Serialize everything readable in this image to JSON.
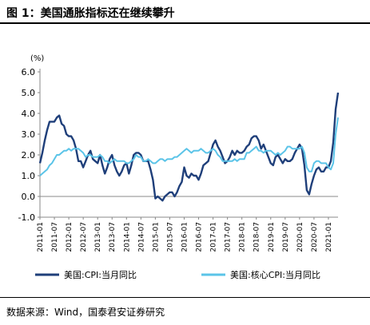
{
  "figure": {
    "title": "图 1：美国通胀指标还在继续攀升",
    "source": "数据来源：Wind，国泰君安证券研究"
  },
  "chart_data": {
    "type": "line",
    "unit_label": "(%)",
    "ylim": [
      -1.0,
      6.0
    ],
    "yticks": [
      "6.0",
      "5.0",
      "4.0",
      "3.0",
      "2.0",
      "1.0",
      "0.0",
      "-1.0"
    ],
    "ytick_values": [
      6,
      5,
      4,
      3,
      2,
      1,
      0,
      -1
    ],
    "xticks": [
      "2011-01",
      "2011-07",
      "2012-01",
      "2012-07",
      "2013-01",
      "2013-07",
      "2014-01",
      "2014-07",
      "2015-01",
      "2015-07",
      "2016-01",
      "2016-07",
      "2017-01",
      "2017-07",
      "2018-01",
      "2018-07",
      "2019-01",
      "2019-07",
      "2020-01",
      "2020-07",
      "2021-01"
    ],
    "x_start": "2011-01",
    "x_end": "2021-05",
    "grid": false,
    "legend_position": "bottom",
    "series": [
      {
        "name": "美国:CPI:当月同比",
        "color": "#1f3f7a",
        "x": [
          "2011-01",
          "2011-02",
          "2011-03",
          "2011-04",
          "2011-05",
          "2011-06",
          "2011-07",
          "2011-08",
          "2011-09",
          "2011-10",
          "2011-11",
          "2011-12",
          "2012-01",
          "2012-02",
          "2012-03",
          "2012-04",
          "2012-05",
          "2012-06",
          "2012-07",
          "2012-08",
          "2012-09",
          "2012-10",
          "2012-11",
          "2012-12",
          "2013-01",
          "2013-02",
          "2013-03",
          "2013-04",
          "2013-05",
          "2013-06",
          "2013-07",
          "2013-08",
          "2013-09",
          "2013-10",
          "2013-11",
          "2013-12",
          "2014-01",
          "2014-02",
          "2014-03",
          "2014-04",
          "2014-05",
          "2014-06",
          "2014-07",
          "2014-08",
          "2014-09",
          "2014-10",
          "2014-11",
          "2014-12",
          "2015-01",
          "2015-02",
          "2015-03",
          "2015-04",
          "2015-05",
          "2015-06",
          "2015-07",
          "2015-08",
          "2015-09",
          "2015-10",
          "2015-11",
          "2015-12",
          "2016-01",
          "2016-02",
          "2016-03",
          "2016-04",
          "2016-05",
          "2016-06",
          "2016-07",
          "2016-08",
          "2016-09",
          "2016-10",
          "2016-11",
          "2016-12",
          "2017-01",
          "2017-02",
          "2017-03",
          "2017-04",
          "2017-05",
          "2017-06",
          "2017-07",
          "2017-08",
          "2017-09",
          "2017-10",
          "2017-11",
          "2017-12",
          "2018-01",
          "2018-02",
          "2018-03",
          "2018-04",
          "2018-05",
          "2018-06",
          "2018-07",
          "2018-08",
          "2018-09",
          "2018-10",
          "2018-11",
          "2018-12",
          "2019-01",
          "2019-02",
          "2019-03",
          "2019-04",
          "2019-05",
          "2019-06",
          "2019-07",
          "2019-08",
          "2019-09",
          "2019-10",
          "2019-11",
          "2019-12",
          "2020-01",
          "2020-02",
          "2020-03",
          "2020-04",
          "2020-05",
          "2020-06",
          "2020-07",
          "2020-08",
          "2020-09",
          "2020-10",
          "2020-11",
          "2020-12",
          "2021-01",
          "2021-02",
          "2021-03",
          "2021-04",
          "2021-05"
        ],
        "values": [
          1.6,
          2.1,
          2.7,
          3.2,
          3.6,
          3.6,
          3.6,
          3.8,
          3.9,
          3.5,
          3.4,
          3.0,
          2.9,
          2.9,
          2.7,
          2.3,
          1.7,
          1.7,
          1.4,
          1.7,
          2.0,
          2.2,
          1.8,
          1.7,
          1.6,
          2.0,
          1.5,
          1.1,
          1.4,
          1.8,
          2.0,
          1.5,
          1.2,
          1.0,
          1.2,
          1.5,
          1.6,
          1.1,
          1.5,
          2.0,
          2.1,
          2.1,
          2.0,
          1.7,
          1.7,
          1.7,
          1.3,
          0.8,
          -0.1,
          0.0,
          -0.1,
          -0.2,
          0.0,
          0.1,
          0.2,
          0.2,
          0.0,
          0.2,
          0.5,
          0.7,
          1.4,
          1.0,
          0.9,
          1.1,
          1.0,
          1.0,
          0.8,
          1.1,
          1.5,
          1.6,
          1.7,
          2.1,
          2.5,
          2.7,
          2.4,
          2.2,
          1.9,
          1.6,
          1.7,
          1.9,
          2.2,
          2.0,
          2.2,
          2.1,
          2.1,
          2.2,
          2.4,
          2.5,
          2.8,
          2.9,
          2.9,
          2.7,
          2.3,
          2.5,
          2.2,
          1.9,
          1.6,
          1.5,
          1.9,
          2.0,
          1.8,
          1.6,
          1.8,
          1.7,
          1.7,
          1.8,
          2.1,
          2.3,
          2.5,
          2.3,
          1.5,
          0.3,
          0.1,
          0.6,
          1.0,
          1.3,
          1.4,
          1.2,
          1.2,
          1.4,
          1.4,
          1.7,
          2.6,
          4.2,
          5.0
        ]
      },
      {
        "name": "美国:核心CPI:当月同比",
        "color": "#5bc4e8",
        "x": [
          "2011-01",
          "2011-02",
          "2011-03",
          "2011-04",
          "2011-05",
          "2011-06",
          "2011-07",
          "2011-08",
          "2011-09",
          "2011-10",
          "2011-11",
          "2011-12",
          "2012-01",
          "2012-02",
          "2012-03",
          "2012-04",
          "2012-05",
          "2012-06",
          "2012-07",
          "2012-08",
          "2012-09",
          "2012-10",
          "2012-11",
          "2012-12",
          "2013-01",
          "2013-02",
          "2013-03",
          "2013-04",
          "2013-05",
          "2013-06",
          "2013-07",
          "2013-08",
          "2013-09",
          "2013-10",
          "2013-11",
          "2013-12",
          "2014-01",
          "2014-02",
          "2014-03",
          "2014-04",
          "2014-05",
          "2014-06",
          "2014-07",
          "2014-08",
          "2014-09",
          "2014-10",
          "2014-11",
          "2014-12",
          "2015-01",
          "2015-02",
          "2015-03",
          "2015-04",
          "2015-05",
          "2015-06",
          "2015-07",
          "2015-08",
          "2015-09",
          "2015-10",
          "2015-11",
          "2015-12",
          "2016-01",
          "2016-02",
          "2016-03",
          "2016-04",
          "2016-05",
          "2016-06",
          "2016-07",
          "2016-08",
          "2016-09",
          "2016-10",
          "2016-11",
          "2016-12",
          "2017-01",
          "2017-02",
          "2017-03",
          "2017-04",
          "2017-05",
          "2017-06",
          "2017-07",
          "2017-08",
          "2017-09",
          "2017-10",
          "2017-11",
          "2017-12",
          "2018-01",
          "2018-02",
          "2018-03",
          "2018-04",
          "2018-05",
          "2018-06",
          "2018-07",
          "2018-08",
          "2018-09",
          "2018-10",
          "2018-11",
          "2018-12",
          "2019-01",
          "2019-02",
          "2019-03",
          "2019-04",
          "2019-05",
          "2019-06",
          "2019-07",
          "2019-08",
          "2019-09",
          "2019-10",
          "2019-11",
          "2019-12",
          "2020-01",
          "2020-02",
          "2020-03",
          "2020-04",
          "2020-05",
          "2020-06",
          "2020-07",
          "2020-08",
          "2020-09",
          "2020-10",
          "2020-11",
          "2020-12",
          "2021-01",
          "2021-02",
          "2021-03",
          "2021-04",
          "2021-05"
        ],
        "values": [
          1.0,
          1.1,
          1.2,
          1.3,
          1.5,
          1.6,
          1.8,
          2.0,
          2.0,
          2.1,
          2.2,
          2.2,
          2.3,
          2.2,
          2.3,
          2.3,
          2.3,
          2.2,
          2.1,
          1.9,
          2.0,
          2.0,
          1.9,
          1.9,
          1.9,
          2.0,
          1.9,
          1.7,
          1.7,
          1.6,
          1.7,
          1.8,
          1.7,
          1.7,
          1.7,
          1.7,
          1.6,
          1.6,
          1.7,
          1.8,
          2.0,
          1.9,
          1.9,
          1.7,
          1.7,
          1.8,
          1.7,
          1.6,
          1.6,
          1.7,
          1.8,
          1.8,
          1.7,
          1.8,
          1.8,
          1.8,
          1.9,
          1.9,
          2.0,
          2.1,
          2.2,
          2.3,
          2.2,
          2.1,
          2.2,
          2.2,
          2.2,
          2.3,
          2.2,
          2.1,
          2.1,
          2.2,
          2.3,
          2.2,
          2.0,
          1.9,
          1.7,
          1.7,
          1.7,
          1.7,
          1.7,
          1.8,
          1.7,
          1.8,
          1.8,
          1.8,
          2.1,
          2.1,
          2.2,
          2.3,
          2.4,
          2.2,
          2.2,
          2.1,
          2.2,
          2.2,
          2.2,
          2.1,
          2.0,
          2.1,
          2.0,
          2.1,
          2.2,
          2.4,
          2.4,
          2.3,
          2.3,
          2.3,
          2.3,
          2.4,
          2.1,
          1.4,
          1.2,
          1.2,
          1.6,
          1.7,
          1.7,
          1.6,
          1.6,
          1.6,
          1.4,
          1.3,
          1.6,
          3.0,
          3.8
        ]
      }
    ]
  }
}
